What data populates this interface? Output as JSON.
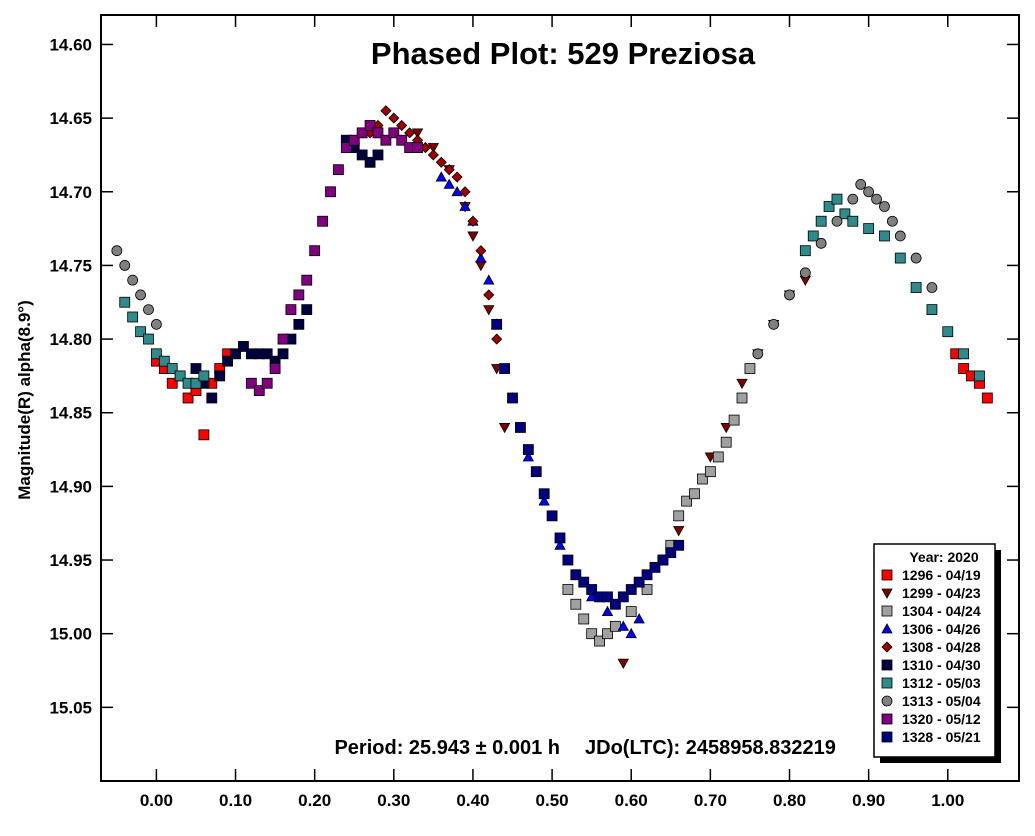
{
  "chart_data": {
    "type": "scatter",
    "title": "Phased Plot: 529 Preziosa",
    "ylabel": "Magnitude(R) alpha(8.9°)",
    "xlabel": "",
    "xlim": [
      -0.07,
      1.09
    ],
    "ylim": [
      15.1,
      14.58
    ],
    "y_inverted": true,
    "x_ticks": [
      "0.00",
      "0.10",
      "0.20",
      "0.30",
      "0.40",
      "0.50",
      "0.60",
      "0.70",
      "0.80",
      "0.90",
      "1.00"
    ],
    "y_ticks": [
      "14.60",
      "14.65",
      "14.70",
      "14.75",
      "14.80",
      "14.85",
      "14.90",
      "14.95",
      "15.00",
      "15.05"
    ],
    "grid": false,
    "legend": {
      "title": "Year: 2020",
      "placement": "bottom-right"
    },
    "annotations": {
      "period": "Period: 25.943 ± 0.001 h",
      "epoch": "JDo(LTC): 2458958.832219"
    },
    "series": [
      {
        "name": "1296 - 04/19",
        "marker": "square",
        "color": "#ff0000",
        "x": [
          0.0,
          0.01,
          0.02,
          0.03,
          0.04,
          0.05,
          0.06,
          0.07,
          0.08,
          0.09,
          1.01,
          1.02,
          1.03,
          1.04,
          1.05
        ],
        "y": [
          14.815,
          14.82,
          14.83,
          14.825,
          14.84,
          14.835,
          14.865,
          14.83,
          14.82,
          14.81,
          14.81,
          14.82,
          14.825,
          14.83,
          14.84
        ]
      },
      {
        "name": "1299 - 04/23",
        "marker": "triangle-down",
        "color": "#800000",
        "x": [
          0.33,
          0.35,
          0.37,
          0.39,
          0.4,
          0.41,
          0.42,
          0.43,
          0.44,
          0.59,
          0.62,
          0.66,
          0.7,
          0.72,
          0.74,
          0.76,
          0.78,
          0.8,
          0.82
        ],
        "y": [
          14.66,
          14.67,
          14.685,
          14.71,
          14.73,
          14.75,
          14.78,
          14.82,
          14.86,
          15.02,
          14.97,
          14.93,
          14.88,
          14.86,
          14.83,
          14.81,
          14.79,
          14.77,
          14.76
        ]
      },
      {
        "name": "1304 - 04/24",
        "marker": "square",
        "color": "#a0a0a0",
        "x": [
          0.52,
          0.53,
          0.54,
          0.55,
          0.56,
          0.57,
          0.58,
          0.6,
          0.62,
          0.64,
          0.65,
          0.66,
          0.67,
          0.68,
          0.69,
          0.7,
          0.71,
          0.72,
          0.73,
          0.74,
          0.75
        ],
        "y": [
          14.97,
          14.98,
          14.99,
          15.0,
          15.005,
          15.0,
          14.995,
          14.985,
          14.97,
          14.95,
          14.94,
          14.92,
          14.91,
          14.905,
          14.895,
          14.89,
          14.88,
          14.87,
          14.855,
          14.84,
          14.82
        ]
      },
      {
        "name": "1306 - 04/26",
        "marker": "triangle-up",
        "color": "#0000ff",
        "x": [
          0.36,
          0.37,
          0.38,
          0.39,
          0.4,
          0.41,
          0.42,
          0.43,
          0.45,
          0.47,
          0.49,
          0.51,
          0.53,
          0.55,
          0.57,
          0.59,
          0.6,
          0.61
        ],
        "y": [
          14.69,
          14.695,
          14.7,
          14.71,
          14.72,
          14.745,
          14.76,
          14.79,
          14.84,
          14.88,
          14.91,
          14.94,
          14.96,
          14.975,
          14.985,
          14.995,
          15.0,
          14.99
        ]
      },
      {
        "name": "1308 - 04/28",
        "marker": "diamond",
        "color": "#a00000",
        "x": [
          0.27,
          0.28,
          0.29,
          0.3,
          0.31,
          0.32,
          0.33,
          0.34,
          0.35,
          0.36,
          0.37,
          0.38,
          0.39,
          0.4,
          0.41,
          0.42,
          0.43
        ],
        "y": [
          14.66,
          14.655,
          14.645,
          14.65,
          14.655,
          14.66,
          14.665,
          14.67,
          14.675,
          14.68,
          14.685,
          14.69,
          14.7,
          14.72,
          14.74,
          14.77,
          14.8
        ]
      },
      {
        "name": "1310 - 04/30",
        "marker": "square",
        "color": "#000040",
        "x": [
          0.05,
          0.06,
          0.07,
          0.08,
          0.09,
          0.1,
          0.11,
          0.12,
          0.13,
          0.14,
          0.15,
          0.16,
          0.17,
          0.18,
          0.19,
          0.24,
          0.25,
          0.26,
          0.27,
          0.28
        ],
        "y": [
          14.82,
          14.83,
          14.84,
          14.825,
          14.815,
          14.81,
          14.805,
          14.81,
          14.81,
          14.81,
          14.815,
          14.81,
          14.8,
          14.79,
          14.78,
          14.665,
          14.67,
          14.675,
          14.68,
          14.675
        ]
      },
      {
        "name": "1312 - 05/03",
        "marker": "square",
        "color": "#2e8b8b",
        "x": [
          -0.04,
          -0.03,
          -0.02,
          -0.01,
          0.0,
          0.01,
          0.02,
          0.03,
          0.04,
          0.05,
          0.06,
          0.82,
          0.83,
          0.84,
          0.85,
          0.86,
          0.87,
          0.88,
          0.9,
          0.92,
          0.94,
          0.96,
          0.98,
          1.0,
          1.02,
          1.04
        ],
        "y": [
          14.775,
          14.785,
          14.795,
          14.8,
          14.81,
          14.815,
          14.82,
          14.825,
          14.83,
          14.83,
          14.825,
          14.74,
          14.73,
          14.72,
          14.71,
          14.705,
          14.715,
          14.72,
          14.725,
          14.73,
          14.745,
          14.765,
          14.78,
          14.795,
          14.81,
          14.825
        ]
      },
      {
        "name": "1313 - 05/04",
        "marker": "circle",
        "color": "#808080",
        "x": [
          -0.05,
          -0.04,
          -0.03,
          -0.02,
          -0.01,
          0.0,
          0.76,
          0.78,
          0.8,
          0.82,
          0.84,
          0.86,
          0.88,
          0.89,
          0.9,
          0.91,
          0.92,
          0.93,
          0.94,
          0.96,
          0.98
        ],
        "y": [
          14.74,
          14.75,
          14.76,
          14.77,
          14.78,
          14.79,
          14.81,
          14.79,
          14.77,
          14.755,
          14.735,
          14.72,
          14.705,
          14.695,
          14.7,
          14.705,
          14.71,
          14.72,
          14.73,
          14.745,
          14.765
        ]
      },
      {
        "name": "1320 - 05/12",
        "marker": "square",
        "color": "#800080",
        "x": [
          0.12,
          0.13,
          0.14,
          0.15,
          0.16,
          0.17,
          0.18,
          0.19,
          0.2,
          0.21,
          0.22,
          0.23,
          0.24,
          0.25,
          0.26,
          0.27,
          0.28,
          0.29,
          0.3,
          0.31,
          0.32,
          0.33
        ],
        "y": [
          14.83,
          14.835,
          14.83,
          14.82,
          14.8,
          14.78,
          14.77,
          14.76,
          14.74,
          14.72,
          14.7,
          14.685,
          14.67,
          14.665,
          14.66,
          14.655,
          14.66,
          14.665,
          14.66,
          14.665,
          14.67,
          14.67
        ]
      },
      {
        "name": "1328 - 05/21",
        "marker": "square",
        "color": "#000080",
        "x": [
          0.43,
          0.44,
          0.45,
          0.46,
          0.47,
          0.48,
          0.49,
          0.5,
          0.51,
          0.52,
          0.53,
          0.54,
          0.55,
          0.56,
          0.57,
          0.58,
          0.59,
          0.6,
          0.61,
          0.62,
          0.63,
          0.64,
          0.65,
          0.66
        ],
        "y": [
          14.79,
          14.82,
          14.84,
          14.86,
          14.875,
          14.89,
          14.905,
          14.92,
          14.935,
          14.95,
          14.96,
          14.965,
          14.97,
          14.975,
          14.975,
          14.98,
          14.975,
          14.97,
          14.965,
          14.96,
          14.955,
          14.95,
          14.945,
          14.94
        ]
      }
    ]
  }
}
